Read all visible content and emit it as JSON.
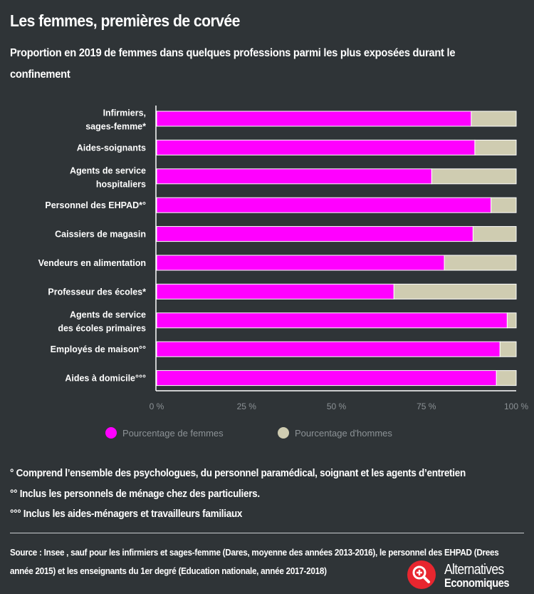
{
  "title": "Les femmes, premières de corvée",
  "subtitle": "Proportion en 2019 de femmes dans quelques professions parmi les plus exposées durant le confinement",
  "colors": {
    "women": "#ff00ff",
    "men": "#cfccb1",
    "background": "#2f3437"
  },
  "chart_data": {
    "type": "bar",
    "orientation": "horizontal",
    "stacked": true,
    "categories": [
      [
        "Infirmiers,",
        "sages-femme*"
      ],
      [
        "Aides-soignants"
      ],
      [
        "Agents de service",
        "hospitaliers"
      ],
      [
        "Personnel des EHPAD*°"
      ],
      [
        "Caissiers de magasin"
      ],
      [
        "Vendeurs en alimentation"
      ],
      [
        "Professeur des écoles*"
      ],
      [
        "Agents de service",
        "des écoles primaires"
      ],
      [
        "Employés de maison°°"
      ],
      [
        "Aides à domicile°°°"
      ]
    ],
    "series": [
      {
        "name": "Pourcentage de femmes",
        "color": "#ff00ff",
        "values": [
          87.5,
          88.5,
          76.5,
          93,
          88,
          80,
          66,
          97.5,
          95.5,
          94.5
        ]
      },
      {
        "name": "Pourcentage d'hommes",
        "color": "#cfccb1",
        "values": [
          12.5,
          11.5,
          23.5,
          7,
          12,
          20,
          34,
          2.5,
          4.5,
          5.5
        ]
      }
    ],
    "xlim": [
      0,
      100
    ],
    "xticks": [
      0,
      25,
      50,
      75,
      100
    ],
    "xtick_labels": [
      "0 %",
      "25 %",
      "50 %",
      "75 %",
      "100 %"
    ],
    "legend_position": "bottom"
  },
  "notes": [
    "° Comprend l’ensemble des psychologues, du personnel paramédical, soignant et les agents d’entretien",
    "°° Inclus les personnels de ménage chez des particuliers.",
    "°°° Inclus les aides-ménagers et travailleurs familiaux"
  ],
  "source": {
    "line1": "Source : Insee , sauf pour les infirmiers et sages-femme (Dares, moyenne des années 2013-2016), le personnel des EHPAD (Drees",
    "line2": "année 2015) et les enseignants du 1er degré (Education nationale, année 2017-2018)"
  },
  "logo": {
    "line1": "Alternatives",
    "line2": "Economiques",
    "icon": "magnifier-icon"
  }
}
